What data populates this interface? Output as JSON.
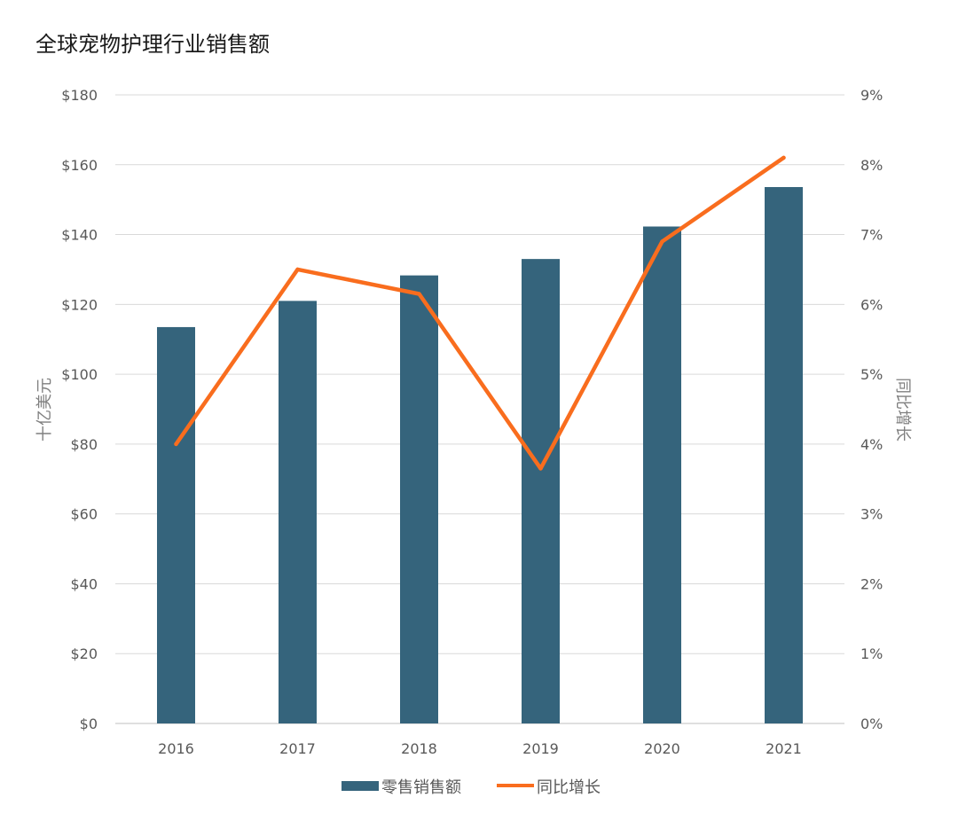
{
  "chart_data": {
    "type": "bar",
    "title": "全球宠物护理行业销售额",
    "categories": [
      "2016",
      "2017",
      "2018",
      "2019",
      "2020",
      "2021"
    ],
    "series": [
      {
        "name": "零售销售额",
        "type": "bar",
        "axis": "left",
        "color": "#35647c",
        "values": [
          113.5,
          121,
          128.3,
          133,
          142.3,
          153.6
        ]
      },
      {
        "name": "同比增长",
        "type": "line",
        "axis": "right",
        "color": "#f96d1e",
        "values": [
          0.04,
          0.065,
          0.0615,
          0.0365,
          0.069,
          0.081
        ]
      }
    ],
    "ylabel": "十亿美元",
    "ylabel_right": "同比增长",
    "ylim": [
      0,
      180
    ],
    "ylim_right": [
      0,
      0.09
    ],
    "yticks": [
      "$0",
      "$20",
      "$40",
      "$60",
      "$80",
      "$100",
      "$120",
      "$140",
      "$160",
      "$180"
    ],
    "yticks_right": [
      "0%",
      "1%",
      "2%",
      "3%",
      "4%",
      "5%",
      "6%",
      "7%",
      "8%",
      "9%"
    ],
    "grid": true,
    "legend_position": "bottom"
  }
}
